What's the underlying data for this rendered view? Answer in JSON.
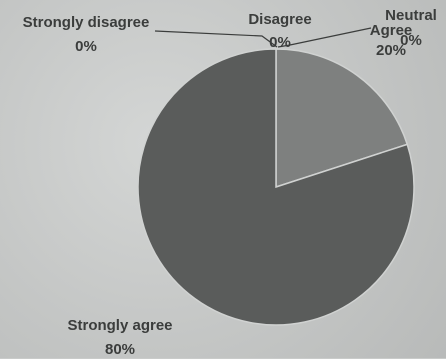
{
  "chart_data": {
    "type": "pie",
    "title": "",
    "categories": [
      "Strongly disagree",
      "Disagree",
      "Neutral",
      "Agree",
      "Strongly agree"
    ],
    "values": [
      0,
      0,
      0,
      20,
      80
    ],
    "value_labels": [
      "0%",
      "0%",
      "0%",
      "20%",
      "80%"
    ],
    "colors": [
      "#5c5e5d",
      "#5c5e5d",
      "#5c5e5d",
      "#7e807f",
      "#5a5c5b"
    ],
    "legend": "none"
  }
}
